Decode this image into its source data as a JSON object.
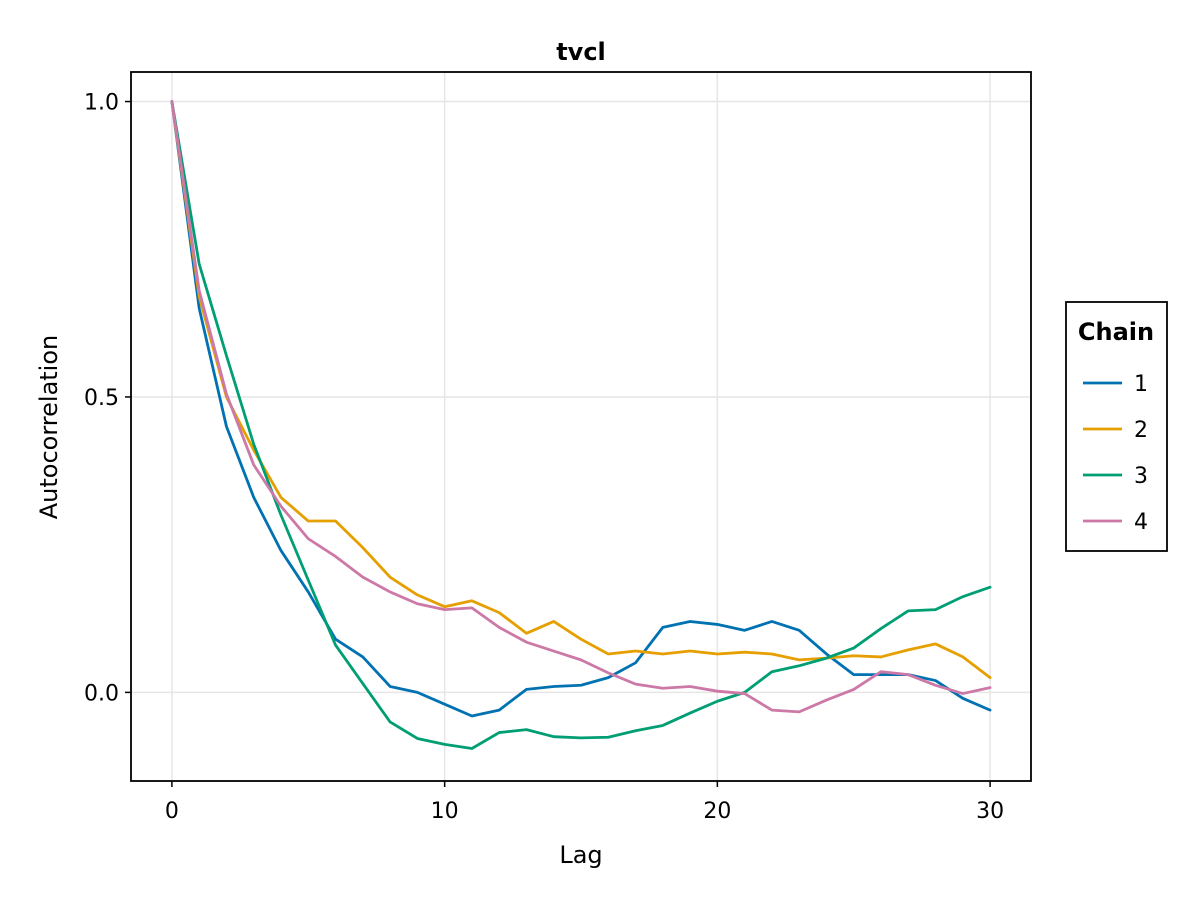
{
  "chart_data": {
    "type": "line",
    "title": "tvcl",
    "xlabel": "Lag",
    "ylabel": "Autocorrelation",
    "xlim": [
      -1.5,
      31.5
    ],
    "ylim": [
      -0.15,
      1.05
    ],
    "xticks": [
      0,
      10,
      20,
      30
    ],
    "xtick_labels": [
      "0",
      "10",
      "20",
      "30"
    ],
    "yticks": [
      0.0,
      0.5,
      1.0
    ],
    "ytick_labels": [
      "0.0",
      "0.5",
      "1.0"
    ],
    "grid": true,
    "legend": {
      "title": "Chain",
      "position": "right"
    },
    "x": [
      0,
      1,
      2,
      3,
      4,
      5,
      6,
      7,
      8,
      9,
      10,
      11,
      12,
      13,
      14,
      15,
      16,
      17,
      18,
      19,
      20,
      21,
      22,
      23,
      24,
      25,
      26,
      27,
      28,
      29,
      30
    ],
    "series": [
      {
        "name": "1",
        "color": "#0072b2",
        "values": [
          1.0,
          0.65,
          0.45,
          0.33,
          0.24,
          0.17,
          0.09,
          0.06,
          0.01,
          0.0,
          -0.02,
          -0.04,
          -0.03,
          0.005,
          0.01,
          0.012,
          0.025,
          0.05,
          0.11,
          0.12,
          0.115,
          0.105,
          0.12,
          0.105,
          0.065,
          0.03,
          0.03,
          0.03,
          0.02,
          -0.01,
          -0.03
        ]
      },
      {
        "name": "2",
        "color": "#e69f00",
        "values": [
          1.0,
          0.67,
          0.5,
          0.41,
          0.33,
          0.29,
          0.29,
          0.245,
          0.195,
          0.165,
          0.145,
          0.155,
          0.135,
          0.1,
          0.12,
          0.09,
          0.065,
          0.07,
          0.065,
          0.07,
          0.065,
          0.068,
          0.065,
          0.055,
          0.058,
          0.062,
          0.06,
          0.072,
          0.082,
          0.06,
          0.025
        ]
      },
      {
        "name": "3",
        "color": "#009e73",
        "values": [
          1.0,
          0.725,
          0.57,
          0.42,
          0.3,
          0.19,
          0.08,
          0.015,
          -0.05,
          -0.078,
          -0.088,
          -0.095,
          -0.068,
          -0.063,
          -0.075,
          -0.077,
          -0.076,
          -0.065,
          -0.056,
          -0.035,
          -0.015,
          0.0,
          0.035,
          0.045,
          0.058,
          0.075,
          0.108,
          0.138,
          0.14,
          0.162,
          0.178
        ]
      },
      {
        "name": "4",
        "color": "#cc79a7",
        "values": [
          1.0,
          0.68,
          0.505,
          0.385,
          0.315,
          0.26,
          0.23,
          0.195,
          0.17,
          0.15,
          0.14,
          0.143,
          0.11,
          0.085,
          0.07,
          0.055,
          0.033,
          0.014,
          0.007,
          0.01,
          0.002,
          -0.002,
          -0.03,
          -0.033,
          -0.013,
          0.005,
          0.035,
          0.03,
          0.012,
          -0.002,
          0.008
        ]
      }
    ]
  }
}
